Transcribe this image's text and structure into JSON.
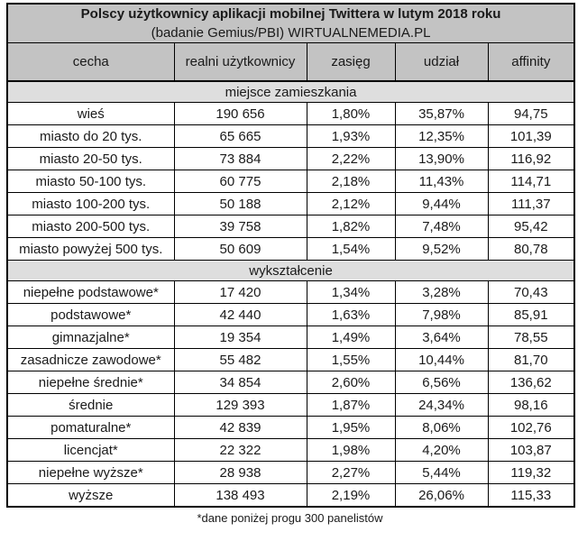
{
  "title": "Polscy użytkownicy aplikacji mobilnej Twittera w lutym 2018 roku",
  "subtitle": "(badanie Gemius/PBI) WIRTUALNEMEDIA.PL",
  "footnote": "*dane poniżej progu 300 panelistów",
  "colors": {
    "header_bg": "#c3c3c3",
    "section_bg": "#dedede",
    "border": "#000000"
  },
  "chart_data": {
    "type": "table",
    "columns": [
      "cecha",
      "realni użytkownicy",
      "zasięg",
      "udział",
      "affinity"
    ],
    "sections": [
      {
        "header": "miejsce zamieszkania",
        "rows": [
          [
            "wieś",
            "190 656",
            "1,80%",
            "35,87%",
            "94,75"
          ],
          [
            "miasto do 20 tys.",
            "65 665",
            "1,93%",
            "12,35%",
            "101,39"
          ],
          [
            "miasto 20-50 tys.",
            "73 884",
            "2,22%",
            "13,90%",
            "116,92"
          ],
          [
            "miasto 50-100 tys.",
            "60 775",
            "2,18%",
            "11,43%",
            "114,71"
          ],
          [
            "miasto 100-200 tys.",
            "50 188",
            "2,12%",
            "9,44%",
            "111,37"
          ],
          [
            "miasto 200-500 tys.",
            "39 758",
            "1,82%",
            "7,48%",
            "95,42"
          ],
          [
            "miasto powyżej 500 tys.",
            "50 609",
            "1,54%",
            "9,52%",
            "80,78"
          ]
        ]
      },
      {
        "header": "wykształcenie",
        "rows": [
          [
            "niepełne podstawowe*",
            "17 420",
            "1,34%",
            "3,28%",
            "70,43"
          ],
          [
            "podstawowe*",
            "42 440",
            "1,63%",
            "7,98%",
            "85,91"
          ],
          [
            "gimnazjalne*",
            "19 354",
            "1,49%",
            "3,64%",
            "78,55"
          ],
          [
            "zasadnicze zawodowe*",
            "55 482",
            "1,55%",
            "10,44%",
            "81,70"
          ],
          [
            "niepełne średnie*",
            "34 854",
            "2,60%",
            "6,56%",
            "136,62"
          ],
          [
            "średnie",
            "129 393",
            "1,87%",
            "24,34%",
            "98,16"
          ],
          [
            "pomaturalne*",
            "42 839",
            "1,95%",
            "8,06%",
            "102,76"
          ],
          [
            "licencjat*",
            "22 322",
            "1,98%",
            "4,20%",
            "103,87"
          ],
          [
            "niepełne wyższe*",
            "28 938",
            "2,27%",
            "5,44%",
            "119,32"
          ],
          [
            "wyższe",
            "138 493",
            "2,19%",
            "26,06%",
            "115,33"
          ]
        ]
      }
    ]
  }
}
